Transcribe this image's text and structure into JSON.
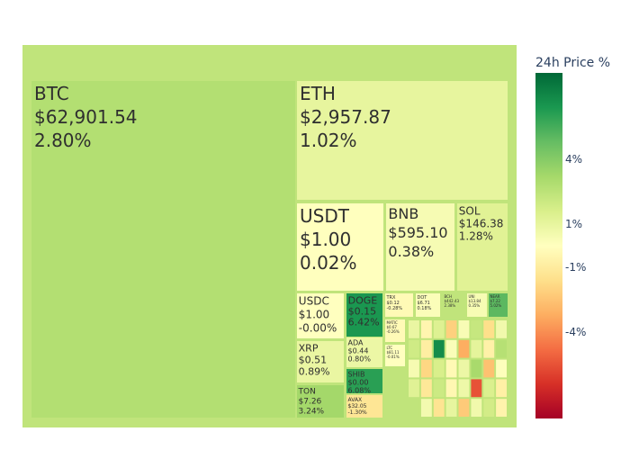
{
  "chart_data": {
    "type": "treemap",
    "colorbar": {
      "title": "24h Price %",
      "ticks": [
        {
          "label": "4%",
          "value": 4
        },
        {
          "label": "1%",
          "value": 1
        },
        {
          "label": "-1%",
          "value": -1
        },
        {
          "label": "-4%",
          "value": -4
        }
      ],
      "colorscale": [
        "#a50026",
        "#d73027",
        "#f46d43",
        "#fdae61",
        "#fee08b",
        "#ffffbf",
        "#d9ef8b",
        "#a6d96a",
        "#66bd63",
        "#1a9850",
        "#006837"
      ]
    },
    "root_change": 2.4,
    "labeled_tiles": [
      {
        "symbol": "BTC",
        "price": "$62,901.54",
        "change_label": "2.80%",
        "change": 2.8
      },
      {
        "symbol": "ETH",
        "price": "$2,957.87",
        "change_label": "1.02%",
        "change": 1.02
      },
      {
        "symbol": "USDT",
        "price": "$1.00",
        "change_label": "0.02%",
        "change": 0.02
      },
      {
        "symbol": "BNB",
        "price": "$595.10",
        "change_label": "0.38%",
        "change": 0.38
      },
      {
        "symbol": "SOL",
        "price": "$146.38",
        "change_label": "1.28%",
        "change": 1.28
      },
      {
        "symbol": "USDC",
        "price": "$1.00",
        "change_label": "-0.00%",
        "change": -0.001
      },
      {
        "symbol": "DOGE",
        "price": "$0.15",
        "change_label": "6.42%",
        "change": 6.42
      },
      {
        "symbol": "XRP",
        "price": "$0.51",
        "change_label": "0.89%",
        "change": 0.89
      },
      {
        "symbol": "ADA",
        "price": "$0.44",
        "change_label": "0.80%",
        "change": 0.8
      },
      {
        "symbol": "SHIB",
        "price": "$0.00",
        "change_label": "6.08%",
        "change": 6.08
      },
      {
        "symbol": "TON",
        "price": "$7.26",
        "change_label": "3.24%",
        "change": 3.24
      },
      {
        "symbol": "AVAX",
        "price": "$32.05",
        "change_label": "-1.30%",
        "change": -1.3
      },
      {
        "symbol": "TRX",
        "price": "$0.12",
        "change_label": "-0.28%",
        "change": -0.28
      },
      {
        "symbol": "DOT",
        "price": "$6.71",
        "change_label": "0.18%",
        "change": 0.18
      },
      {
        "symbol": "BCH",
        "price": "$442.43",
        "change_label": "2.38%",
        "change": 2.38
      },
      {
        "symbol": "UNI",
        "price": "$13.84",
        "change_label": "0.35%",
        "change": 0.35
      },
      {
        "symbol": "NEAR",
        "price": "$7.22",
        "change_label": "5.02%",
        "change": 5.02
      },
      {
        "symbol": "MATIC",
        "price": "$0.67",
        "change_label": "-0.26%",
        "change": -0.26
      },
      {
        "symbol": "LTC",
        "price": "$81.11",
        "change_label": "-0.01%",
        "change": -0.01
      }
    ],
    "small_tile_changes": [
      0.9,
      -0.5,
      1.4,
      -2.1,
      0.3,
      2.2,
      -1.6,
      0.6,
      1.9,
      -0.9,
      6.8,
      0.2,
      -3.2,
      1.1,
      -0.7,
      2.7,
      0.4,
      -1.9,
      1.6,
      -0.3,
      0.8,
      3.1,
      -2.6,
      0.1,
      1.3,
      -1.2,
      2.0,
      -0.4,
      0.7,
      -5.5,
      1.5,
      -0.8,
      2.4,
      0.5,
      -1.4,
      1.0,
      -2.3,
      0.6,
      1.8,
      -0.6
    ]
  }
}
